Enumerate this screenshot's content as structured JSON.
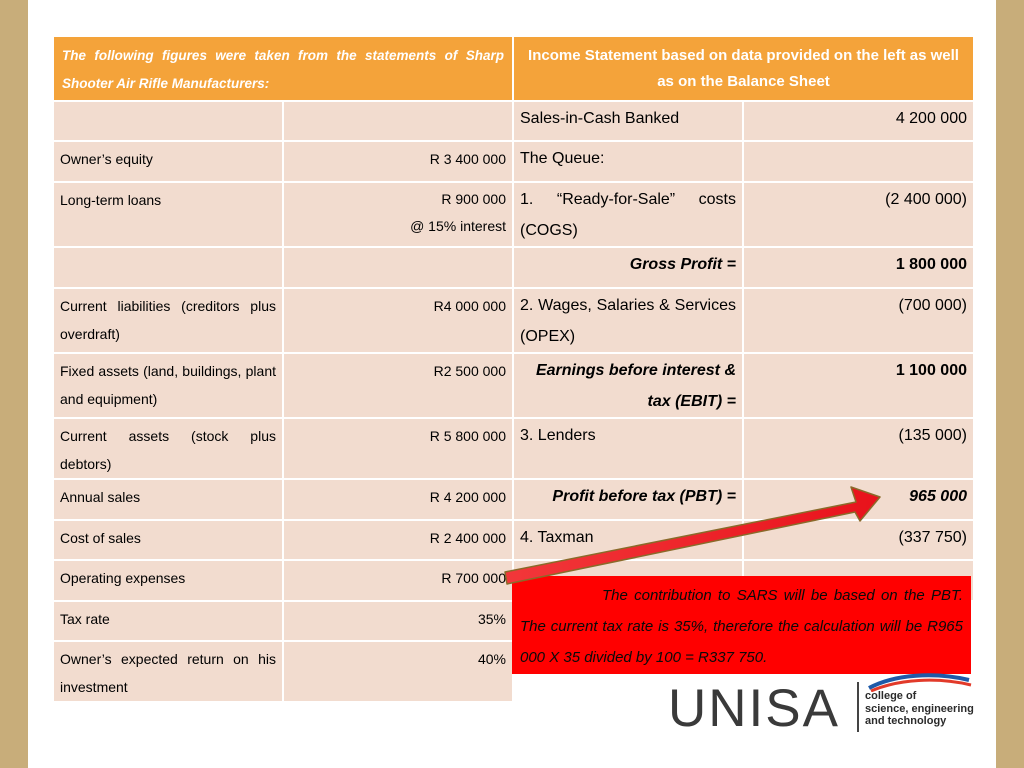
{
  "header": {
    "left": "The following figures were taken from the statements of Sharp Shooter Air Rifle Manufacturers:",
    "right": "Income Statement based on data provided on the left as well as on the Balance Sheet"
  },
  "rows": [
    {
      "left_label": "",
      "left_value": "",
      "right_label": "Sales-in-Cash Banked",
      "right_value": "4 200 000"
    },
    {
      "left_label": "Owner’s equity",
      "left_value": "R 3 400 000",
      "right_label": "The Queue:",
      "right_value": ""
    },
    {
      "left_label": "Long-term loans",
      "left_value": "R 900 000\n@ 15% interest",
      "right_label": "1.  “Ready-for-Sale” costs (COGS)",
      "right_value": "(2 400 000)"
    },
    {
      "left_label": "",
      "left_value": "",
      "right_label": "Gross Profit =",
      "right_value": "1 800 000"
    },
    {
      "left_label": "Current liabilities (creditors plus overdraft)",
      "left_value": "R4 000 000",
      "right_label": "2.  Wages, Salaries & Services (OPEX)",
      "right_value": "(700 000)"
    },
    {
      "left_label": "Fixed assets (land, buildings, plant and equipment)",
      "left_value": "R2 500 000",
      "right_label": "Earnings before interest & tax (EBIT) =",
      "right_value": "1 100 000"
    },
    {
      "left_label": "Current assets (stock plus debtors)",
      "left_value": "R 5 800 000",
      "right_label": "3.  Lenders",
      "right_value": "(135 000)"
    },
    {
      "left_label": "Annual sales",
      "left_value": "R 4 200 000",
      "right_label": "Profit before tax (PBT) =",
      "right_value": "965 000"
    },
    {
      "left_label": "Cost of sales",
      "left_value": "R  2 400 000",
      "right_label": "4.  Taxman",
      "right_value": "(337 750)"
    },
    {
      "left_label": "Operating expenses",
      "left_value": "R  700 000",
      "right_label": "",
      "right_value": ""
    },
    {
      "left_label": "Tax rate",
      "left_value": "35%"
    },
    {
      "left_label": "Owner’s expected return on his investment",
      "left_value": "40%"
    }
  ],
  "note": "The contribution to SARS will be based on the PBT.  The current tax rate is 35%, therefore the calculation will be R965 000 X 35 divided by 100 = R337 750.",
  "logo": {
    "word": "UNISA",
    "tagline_1": "college of",
    "tagline_2": "science, engineering",
    "tagline_3": "and technology"
  },
  "colors": {
    "background_frame": "#c8ad7a",
    "header_orange": "#f4a33a",
    "cell_fill": "#f2dccf",
    "note_red": "#ff0000",
    "arrow_red": "#e8121b"
  }
}
